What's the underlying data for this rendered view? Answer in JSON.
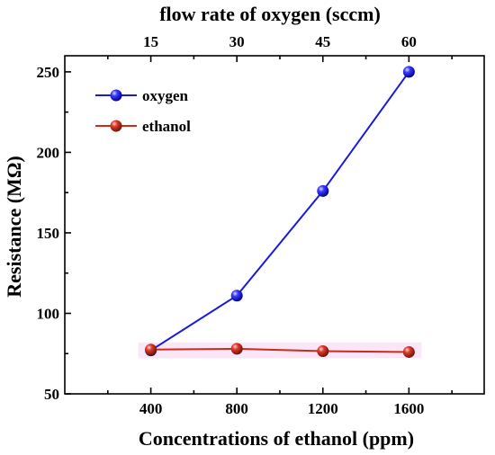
{
  "chart_data": {
    "type": "line",
    "title": "",
    "xlabel": "Concentrations of  ethanol (ppm)",
    "x2label": "flow rate of  oxygen (sccm)",
    "ylabel": "Resistance (MΩ)",
    "x": [
      400,
      800,
      1200,
      1600
    ],
    "x_ticks": [
      "400",
      "800",
      "1200",
      "1600"
    ],
    "x2_ticks": [
      "15",
      "30",
      "45",
      "60"
    ],
    "y_ticks": [
      "50",
      "100",
      "150",
      "200",
      "250"
    ],
    "xlim": [
      0,
      1950
    ],
    "ylim": [
      50,
      260
    ],
    "grid": false,
    "legend_position": "top-left",
    "series": [
      {
        "name": "oxygen",
        "color": "#1a1adf",
        "values": [
          77,
          111,
          176,
          250
        ]
      },
      {
        "name": "ethanol",
        "color": "#cc2a1a",
        "values": [
          77.5,
          78,
          76.5,
          76
        ]
      }
    ]
  }
}
